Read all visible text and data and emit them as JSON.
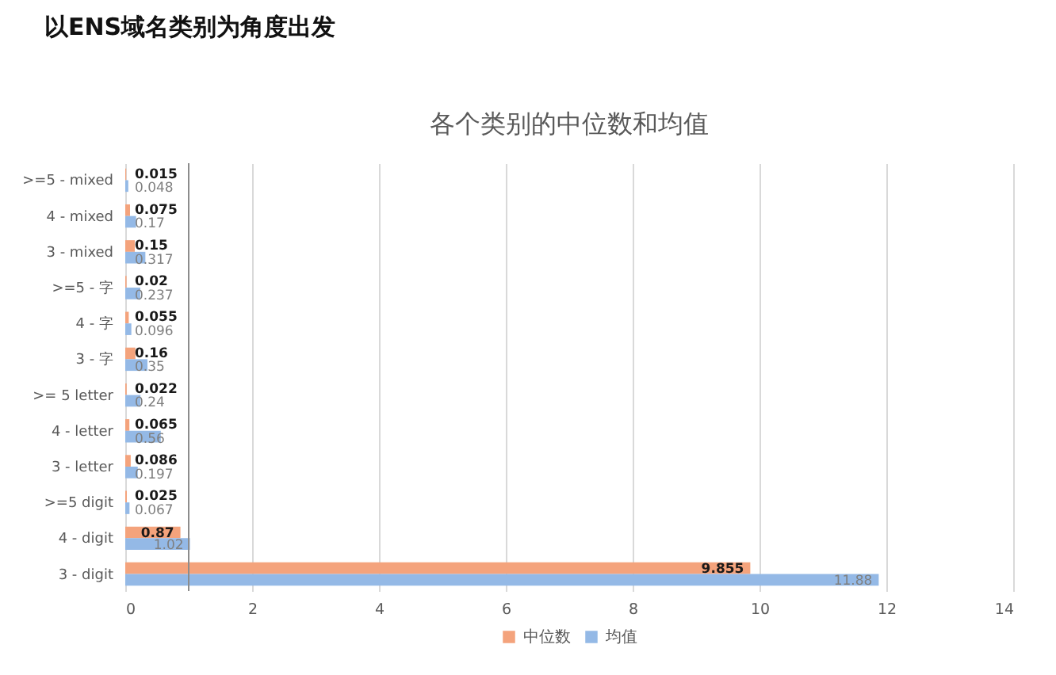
{
  "chart_data": {
    "type": "bar",
    "orientation": "horizontal",
    "title": "以ENS域名类别为角度出发",
    "subtitle": "各个类别的中位数和均值",
    "categories": [
      ">=5 - mixed",
      "4 - mixed",
      "3 - mixed",
      ">=5 - 字",
      "4 - 字",
      "3 - 字",
      ">= 5  letter",
      "4 - letter",
      "3 - letter",
      ">=5 digit",
      "4 - digit",
      "3 - digit"
    ],
    "series": [
      {
        "name": "中位数",
        "color": "#f4a37c",
        "values": [
          0.015,
          0.075,
          0.15,
          0.02,
          0.055,
          0.16,
          0.022,
          0.065,
          0.086,
          0.025,
          0.87,
          9.855
        ]
      },
      {
        "name": "均值",
        "color": "#94b9e6",
        "values": [
          0.048,
          0.17,
          0.317,
          0.237,
          0.096,
          0.35,
          0.24,
          0.56,
          0.197,
          0.067,
          1.02,
          11.88
        ]
      }
    ],
    "xlim": [
      0,
      14
    ],
    "xticks": [
      0,
      2,
      4,
      6,
      8,
      10,
      12,
      14
    ],
    "grid": "x",
    "legend": "bottom",
    "data_labels": true,
    "ref_lines": [
      {
        "axis": "x",
        "value": 1,
        "color": "#8c8c8c"
      }
    ]
  }
}
